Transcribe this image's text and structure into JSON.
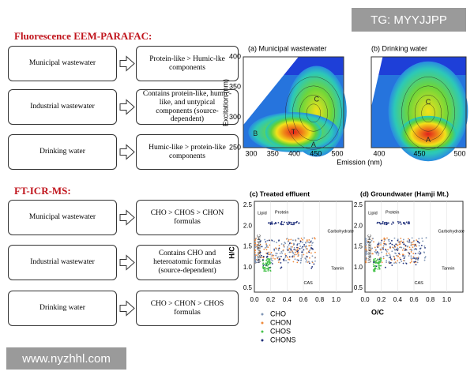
{
  "watermark_top": "TG: MYYJJPP",
  "watermark_bottom": "www.nyzhhl.com",
  "sections": [
    {
      "title": "Fluorescence EEM-PARAFAC:",
      "rows": [
        {
          "source": "Municipal wastewater",
          "result": "Protein-like > Humic-lke components"
        },
        {
          "source": "Industrial wastewater",
          "result": "Contains protein-like, humic-like, and untypical components (source-dependent)"
        },
        {
          "source": "Drinking water",
          "result": "Humic-like > protein-like components"
        }
      ]
    },
    {
      "title": "FT-ICR-MS:",
      "rows": [
        {
          "source": "Municipal wastewater",
          "result": "CHO > CHOS > CHON formulas"
        },
        {
          "source": "Industrial wastewater",
          "result": "Contains CHO and heteroatomic formulas (source-dependent)"
        },
        {
          "source": "Drinking water",
          "result": "CHO > CHON > CHOS formulas"
        }
      ]
    }
  ],
  "eem": {
    "panels": [
      {
        "title": "(a) Municipal wastewater",
        "xticks": [
          "300",
          "350",
          "400",
          "450",
          "500"
        ],
        "peaks": [
          "B",
          "T",
          "A",
          "C"
        ]
      },
      {
        "title": "(b) Drinking water",
        "xticks": [
          "400",
          "450",
          "500"
        ],
        "peaks": [
          "C",
          "A"
        ]
      }
    ],
    "yticks": [
      "400",
      "350",
      "300",
      "250"
    ],
    "xlabel": "Emission (nm)",
    "ylabel": "Excitation (nm)"
  },
  "ftms": {
    "panels": [
      {
        "title": "(c) Treated effluent"
      },
      {
        "title": "(d) Groundwater (Hamji Mt.)"
      }
    ],
    "yticks": [
      "2.5",
      "2.0",
      "1.5",
      "1.0",
      "0.5"
    ],
    "xticks": [
      "0.0",
      "0.2",
      "0.4",
      "0.6",
      "0.8",
      "1.0"
    ],
    "regions": [
      "Lipid",
      "Protein",
      "Carbohydrate",
      "Tannin",
      "CAS",
      "Unsaturated HC"
    ],
    "ylabel": "H/C",
    "xlabel": "O/C",
    "legend": [
      "CHO",
      "CHON",
      "CHOS",
      "CHONS"
    ]
  }
}
